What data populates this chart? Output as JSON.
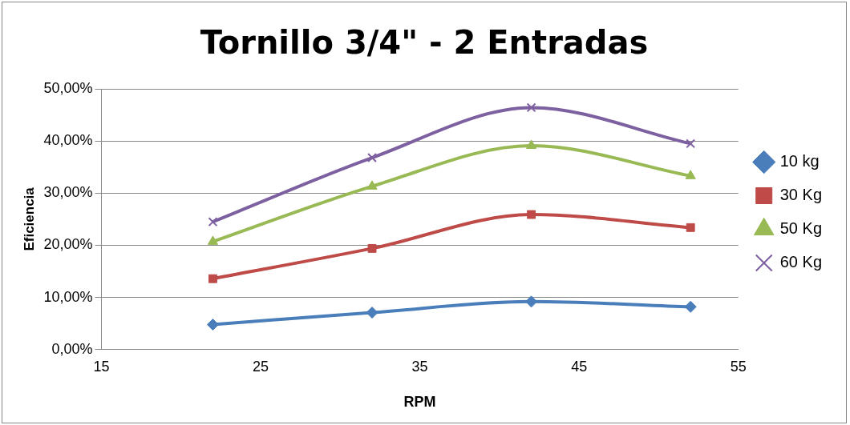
{
  "chart_data": {
    "type": "line",
    "title": "Tornillo 3/4\" - 2 Entradas",
    "xlabel": "RPM",
    "ylabel": "Eficiencia",
    "x": [
      22,
      32,
      42,
      52
    ],
    "series": [
      {
        "name": "10 kg",
        "color": "#4a7ebb",
        "marker": "diamond",
        "values": [
          4.8,
          7.1,
          9.2,
          8.2
        ]
      },
      {
        "name": "30 Kg",
        "color": "#be4b48",
        "marker": "square",
        "values": [
          13.6,
          19.4,
          25.9,
          23.4
        ]
      },
      {
        "name": "50 Kg",
        "color": "#98b954",
        "marker": "triangle",
        "values": [
          20.7,
          31.3,
          39.1,
          33.3
        ]
      },
      {
        "name": "60 Kg",
        "color": "#7d60a0",
        "marker": "cross",
        "values": [
          24.5,
          36.8,
          46.4,
          39.5
        ]
      }
    ],
    "xlim": [
      15,
      55
    ],
    "xticks": [
      15,
      25,
      35,
      45,
      55
    ],
    "ylim": [
      0,
      50
    ],
    "yticks": [
      {
        "value": 0,
        "label": "0,00%"
      },
      {
        "value": 10,
        "label": "10,00%"
      },
      {
        "value": 20,
        "label": "20,00%"
      },
      {
        "value": 30,
        "label": "30,00%"
      },
      {
        "value": 40,
        "label": "40,00%"
      },
      {
        "value": 50,
        "label": "50,00%"
      }
    ],
    "grid": "y",
    "legend": "right"
  }
}
